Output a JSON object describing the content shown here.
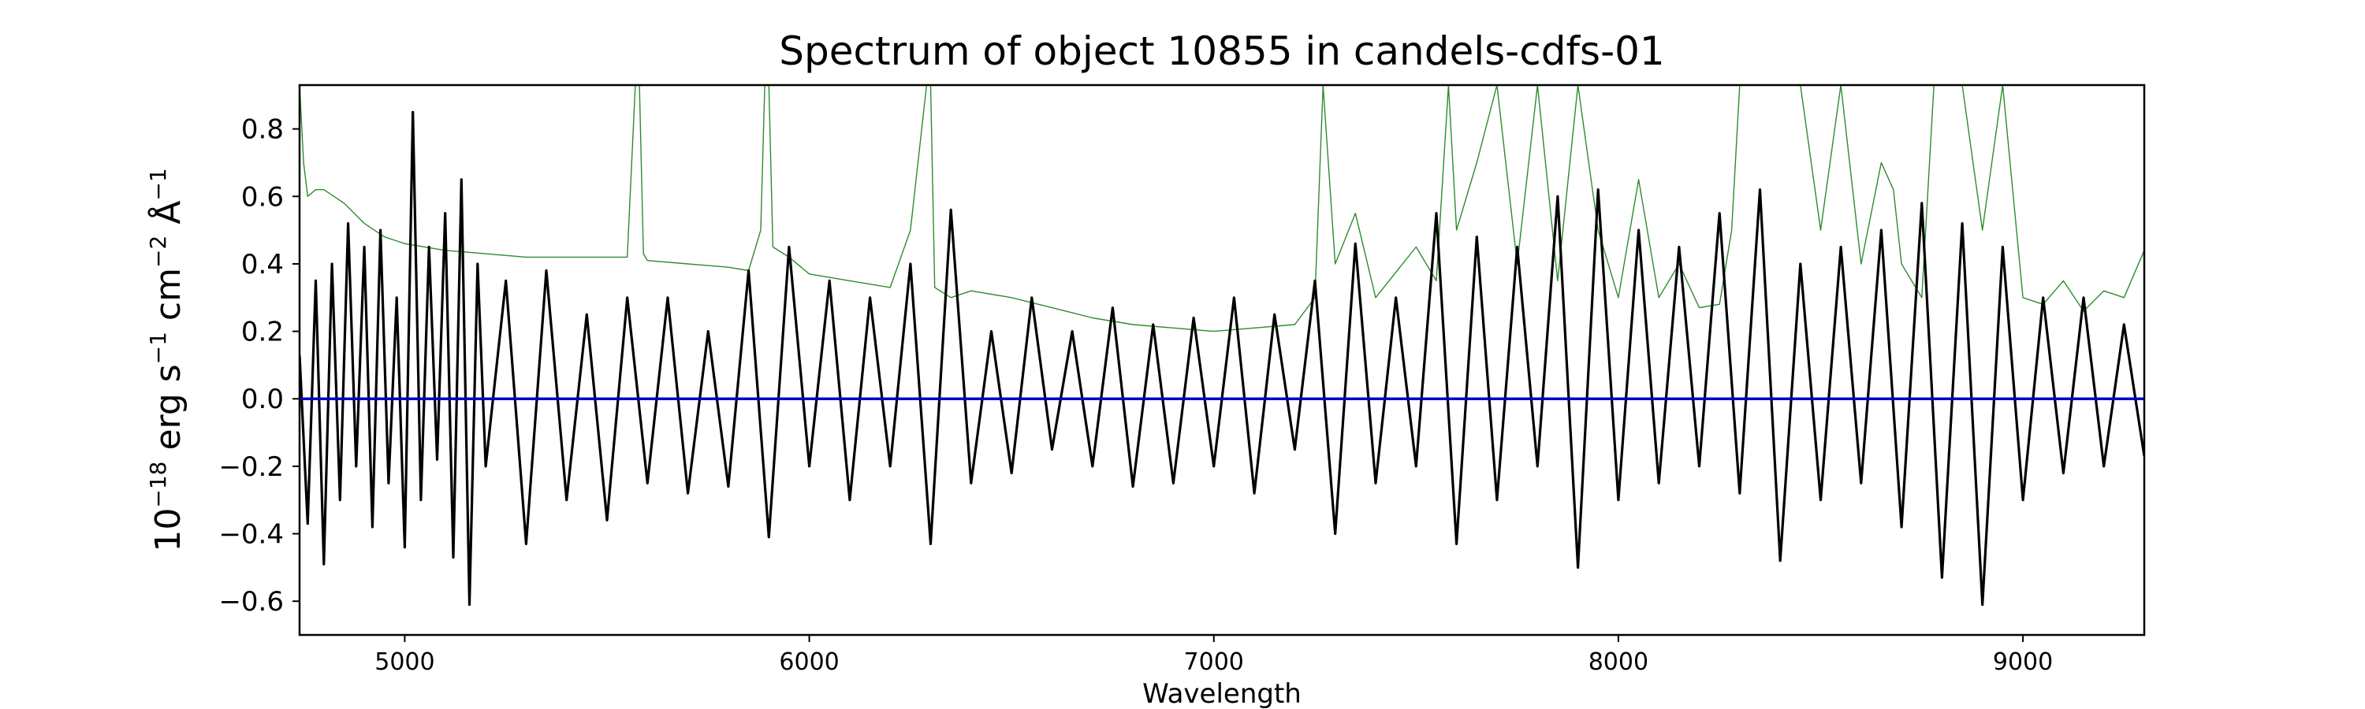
{
  "chart_data": {
    "type": "line",
    "title": "Spectrum of object 10855 in candels-cdfs-01",
    "xlabel": "Wavelength",
    "ylabel": {
      "base": "10",
      "exp": "−18",
      "unit_parts": [
        {
          "text": " erg s",
          "sup": "−1"
        },
        {
          "text": " cm",
          "sup": "−2"
        },
        {
          "text": " Å",
          "sup": "−1"
        }
      ]
    },
    "xlim": [
      4740,
      9300
    ],
    "ylim": [
      -0.7,
      0.93
    ],
    "x_ticks": [
      5000,
      6000,
      7000,
      8000,
      9000
    ],
    "y_ticks": [
      -0.6,
      -0.4,
      -0.2,
      0.0,
      0.2,
      0.4,
      0.6,
      0.8
    ],
    "x_tick_labels": [
      "5000",
      "6000",
      "7000",
      "8000",
      "9000"
    ],
    "y_tick_labels": [
      "−0.6",
      "−0.4",
      "−0.2",
      "0.0",
      "0.2",
      "0.4",
      "0.6",
      "0.8"
    ],
    "grid": false,
    "legend": "none",
    "series": [
      {
        "role": "flux",
        "color": "#000000",
        "x": [
          4740,
          4760,
          4780,
          4800,
          4820,
          4840,
          4860,
          4880,
          4900,
          4920,
          4940,
          4960,
          4980,
          5000,
          5020,
          5040,
          5060,
          5080,
          5100,
          5120,
          5140,
          5160,
          5180,
          5200,
          5250,
          5300,
          5350,
          5400,
          5450,
          5500,
          5550,
          5600,
          5650,
          5700,
          5750,
          5800,
          5850,
          5900,
          5950,
          6000,
          6050,
          6100,
          6150,
          6200,
          6250,
          6300,
          6350,
          6400,
          6450,
          6500,
          6550,
          6600,
          6650,
          6700,
          6750,
          6800,
          6850,
          6900,
          6950,
          7000,
          7050,
          7100,
          7150,
          7200,
          7250,
          7300,
          7350,
          7400,
          7450,
          7500,
          7550,
          7600,
          7650,
          7700,
          7750,
          7800,
          7850,
          7900,
          7950,
          8000,
          8050,
          8100,
          8150,
          8200,
          8250,
          8300,
          8350,
          8400,
          8450,
          8500,
          8550,
          8600,
          8650,
          8700,
          8750,
          8800,
          8850,
          8900,
          8950,
          9000,
          9050,
          9100,
          9150,
          9200,
          9250,
          9300
        ],
        "y": [
          0.13,
          -0.37,
          0.35,
          -0.49,
          0.4,
          -0.3,
          0.52,
          -0.2,
          0.45,
          -0.38,
          0.5,
          -0.25,
          0.3,
          -0.44,
          0.85,
          -0.3,
          0.45,
          -0.18,
          0.55,
          -0.47,
          0.65,
          -0.61,
          0.4,
          -0.2,
          0.35,
          -0.43,
          0.38,
          -0.3,
          0.25,
          -0.36,
          0.3,
          -0.25,
          0.3,
          -0.28,
          0.2,
          -0.26,
          0.38,
          -0.41,
          0.45,
          -0.2,
          0.35,
          -0.3,
          0.3,
          -0.2,
          0.4,
          -0.43,
          0.56,
          -0.25,
          0.2,
          -0.22,
          0.3,
          -0.15,
          0.2,
          -0.2,
          0.27,
          -0.26,
          0.22,
          -0.25,
          0.24,
          -0.2,
          0.3,
          -0.28,
          0.25,
          -0.15,
          0.35,
          -0.4,
          0.46,
          -0.25,
          0.3,
          -0.2,
          0.55,
          -0.43,
          0.48,
          -0.3,
          0.45,
          -0.2,
          0.6,
          -0.5,
          0.62,
          -0.3,
          0.5,
          -0.25,
          0.45,
          -0.2,
          0.55,
          -0.28,
          0.62,
          -0.48,
          0.4,
          -0.3,
          0.45,
          -0.25,
          0.5,
          -0.38,
          0.58,
          -0.53,
          0.52,
          -0.61,
          0.45,
          -0.3,
          0.3,
          -0.22,
          0.3,
          -0.2,
          0.22,
          -0.17
        ]
      },
      {
        "role": "error",
        "color": "#2e8b2e",
        "x": [
          4740,
          4750,
          4760,
          4780,
          4800,
          4850,
          4900,
          4950,
          5000,
          5100,
          5200,
          5300,
          5400,
          5500,
          5550,
          5570,
          5580,
          5590,
          5600,
          5700,
          5800,
          5850,
          5880,
          5890,
          5900,
          5910,
          5950,
          6000,
          6100,
          6200,
          6250,
          6290,
          6300,
          6310,
          6350,
          6400,
          6500,
          6600,
          6700,
          6800,
          6900,
          7000,
          7100,
          7200,
          7250,
          7270,
          7300,
          7350,
          7400,
          7500,
          7550,
          7580,
          7600,
          7650,
          7700,
          7750,
          7800,
          7850,
          7900,
          7950,
          8000,
          8050,
          8100,
          8150,
          8200,
          8250,
          8280,
          8300,
          8350,
          8400,
          8450,
          8500,
          8550,
          8600,
          8650,
          8680,
          8700,
          8750,
          8780,
          8800,
          8850,
          8900,
          8950,
          9000,
          9050,
          9100,
          9150,
          9200,
          9250,
          9300
        ],
        "y": [
          0.93,
          0.7,
          0.6,
          0.62,
          0.62,
          0.58,
          0.52,
          0.48,
          0.46,
          0.44,
          0.43,
          0.42,
          0.42,
          0.42,
          0.42,
          0.93,
          0.93,
          0.43,
          0.41,
          0.4,
          0.39,
          0.38,
          0.5,
          0.93,
          0.93,
          0.45,
          0.42,
          0.37,
          0.35,
          0.33,
          0.5,
          0.93,
          0.93,
          0.33,
          0.3,
          0.32,
          0.3,
          0.27,
          0.24,
          0.22,
          0.21,
          0.2,
          0.21,
          0.22,
          0.3,
          0.93,
          0.4,
          0.55,
          0.3,
          0.45,
          0.35,
          0.93,
          0.5,
          0.7,
          0.93,
          0.4,
          0.93,
          0.35,
          0.93,
          0.5,
          0.3,
          0.65,
          0.3,
          0.4,
          0.27,
          0.28,
          0.5,
          0.93,
          0.93,
          0.93,
          0.93,
          0.5,
          0.93,
          0.4,
          0.7,
          0.62,
          0.4,
          0.3,
          0.93,
          0.93,
          0.93,
          0.5,
          0.93,
          0.3,
          0.28,
          0.35,
          0.26,
          0.32,
          0.3,
          0.44
        ]
      },
      {
        "role": "zero-line",
        "color": "#0000cc",
        "x": [
          4740,
          9300
        ],
        "y": [
          0.0,
          0.0
        ]
      }
    ]
  }
}
